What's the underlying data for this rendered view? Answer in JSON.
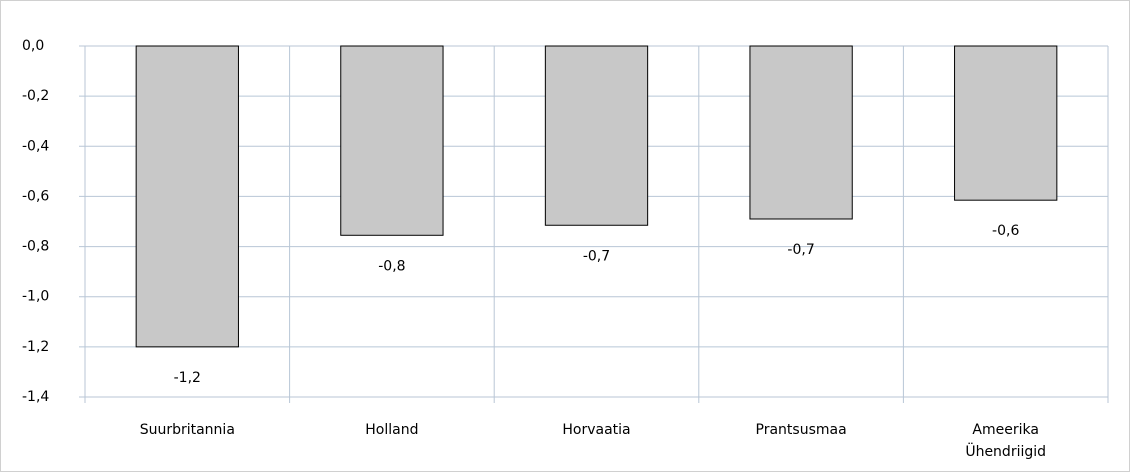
{
  "chart_data": {
    "type": "bar",
    "categories": [
      "Suurbritannia",
      "Holland",
      "Horvaatia",
      "Prantsusmaa",
      "Ameerika Ühendriigid"
    ],
    "values": [
      -1.2,
      -0.755,
      -0.715,
      -0.69,
      -0.615
    ],
    "value_labels": [
      "-1,2",
      "-0,8",
      "-0,7",
      "-0,7",
      "-0,6"
    ],
    "color": "#c8c8c8",
    "ylim": [
      -1.4,
      0
    ],
    "yticks": [
      {
        "value": 0,
        "label": "0,0"
      },
      {
        "value": -0.2,
        "label": "-0,2"
      },
      {
        "value": -0.4,
        "label": "-0,4"
      },
      {
        "value": -0.6,
        "label": "-0,6"
      },
      {
        "value": -0.8,
        "label": "-0,8"
      },
      {
        "value": -1,
        "label": "-1,0"
      },
      {
        "value": -1.2,
        "label": "-1,2"
      },
      {
        "value": -1.4,
        "label": "-1,4"
      }
    ],
    "grid": true
  }
}
